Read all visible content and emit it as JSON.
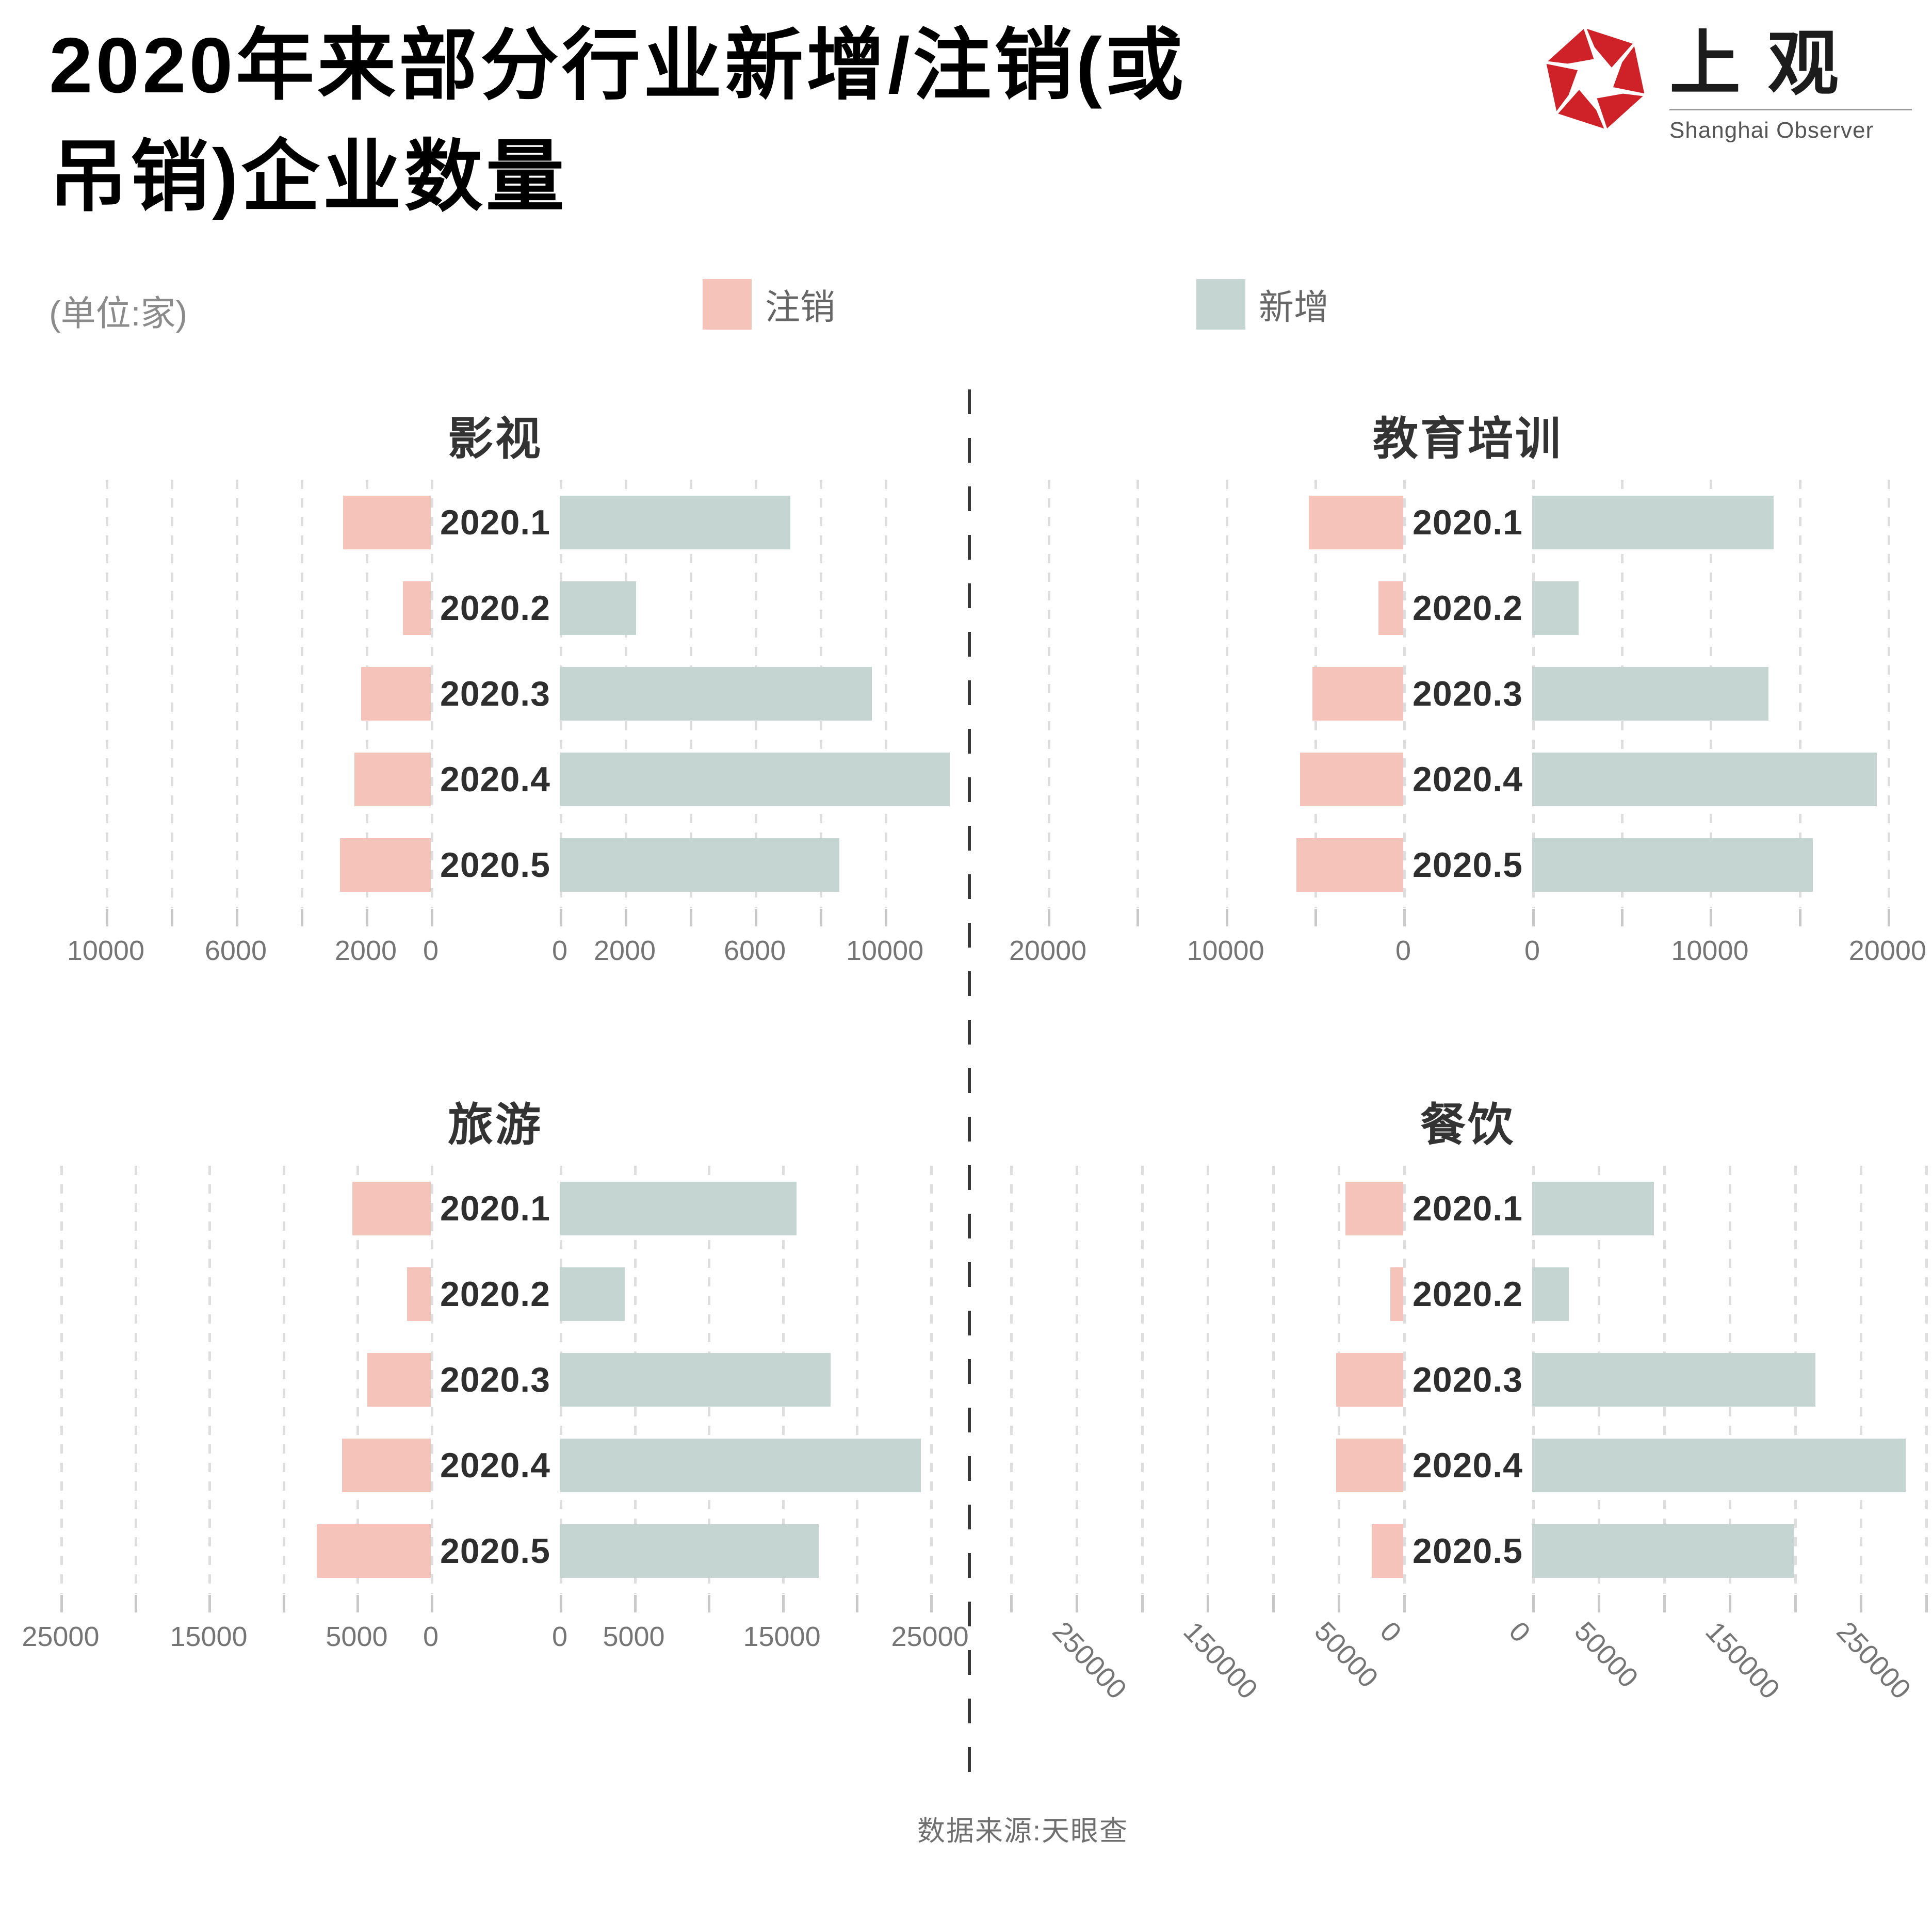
{
  "header": {
    "title_lines": [
      "2020年来部分行业新增/注销(或",
      "吊销)企业数量"
    ],
    "unit_label": "(单位:家)",
    "logo": {
      "cn": "上观",
      "en": "Shanghai Observer",
      "brand_red": "#cf2128"
    }
  },
  "legend": [
    {
      "label": "注销",
      "color": "#f5c3ba"
    },
    {
      "label": "新增",
      "color": "#c5d5d1"
    }
  ],
  "source": "数据来源:天眼查",
  "chart_data": [
    {
      "type": "bar",
      "id": "film-tv",
      "title": "影视",
      "orientation": "diverging-horizontal",
      "categories": [
        "2020.1",
        "2020.2",
        "2020.3",
        "2020.4",
        "2020.5"
      ],
      "series": [
        {
          "name": "注销",
          "color": "#f5c3ba",
          "values": [
            2700,
            850,
            2150,
            2350,
            2800
          ]
        },
        {
          "name": "新增",
          "color": "#c5d5d1",
          "values": [
            7100,
            2350,
            9600,
            12000,
            8600
          ]
        }
      ],
      "axis": {
        "max": 12300,
        "grid_step": 2000,
        "grid_max": 10000,
        "labeled_ticks": [
          0,
          2000,
          6000,
          10000
        ],
        "rotated_labels": false
      }
    },
    {
      "type": "bar",
      "id": "education-training",
      "title": "教育培训",
      "orientation": "diverging-horizontal",
      "categories": [
        "2020.1",
        "2020.2",
        "2020.3",
        "2020.4",
        "2020.5"
      ],
      "series": [
        {
          "name": "注销",
          "color": "#f5c3ba",
          "values": [
            5300,
            1400,
            5100,
            5800,
            6000
          ]
        },
        {
          "name": "新增",
          "color": "#c5d5d1",
          "values": [
            13600,
            2600,
            13300,
            19400,
            15800
          ]
        }
      ],
      "axis": {
        "max": 22500,
        "grid_step": 5000,
        "grid_max": 20000,
        "labeled_ticks": [
          0,
          10000,
          20000
        ],
        "rotated_labels": false
      }
    },
    {
      "type": "bar",
      "id": "tourism",
      "title": "旅游",
      "orientation": "diverging-horizontal",
      "categories": [
        "2020.1",
        "2020.2",
        "2020.3",
        "2020.4",
        "2020.5"
      ],
      "series": [
        {
          "name": "注销",
          "color": "#f5c3ba",
          "values": [
            5300,
            1600,
            4300,
            6000,
            7700
          ]
        },
        {
          "name": "新增",
          "color": "#c5d5d1",
          "values": [
            16000,
            4400,
            18300,
            24400,
            17500
          ]
        }
      ],
      "axis": {
        "max": 27000,
        "grid_step": 5000,
        "grid_max": 25000,
        "labeled_ticks": [
          0,
          5000,
          15000,
          25000
        ],
        "rotated_labels": false
      }
    },
    {
      "type": "bar",
      "id": "catering",
      "title": "餐饮",
      "orientation": "diverging-horizontal",
      "categories": [
        "2020.1",
        "2020.2",
        "2020.3",
        "2020.4",
        "2020.5"
      ],
      "series": [
        {
          "name": "注销",
          "color": "#f5c3ba",
          "values": [
            44000,
            10000,
            51000,
            51000,
            24000
          ]
        },
        {
          "name": "新增",
          "color": "#c5d5d1",
          "values": [
            93000,
            28000,
            216000,
            285000,
            200000
          ]
        }
      ],
      "axis": {
        "max": 305000,
        "grid_step": 50000,
        "grid_max": 300000,
        "labeled_ticks": [
          0,
          50000,
          150000,
          250000
        ],
        "rotated_labels": true
      }
    }
  ]
}
